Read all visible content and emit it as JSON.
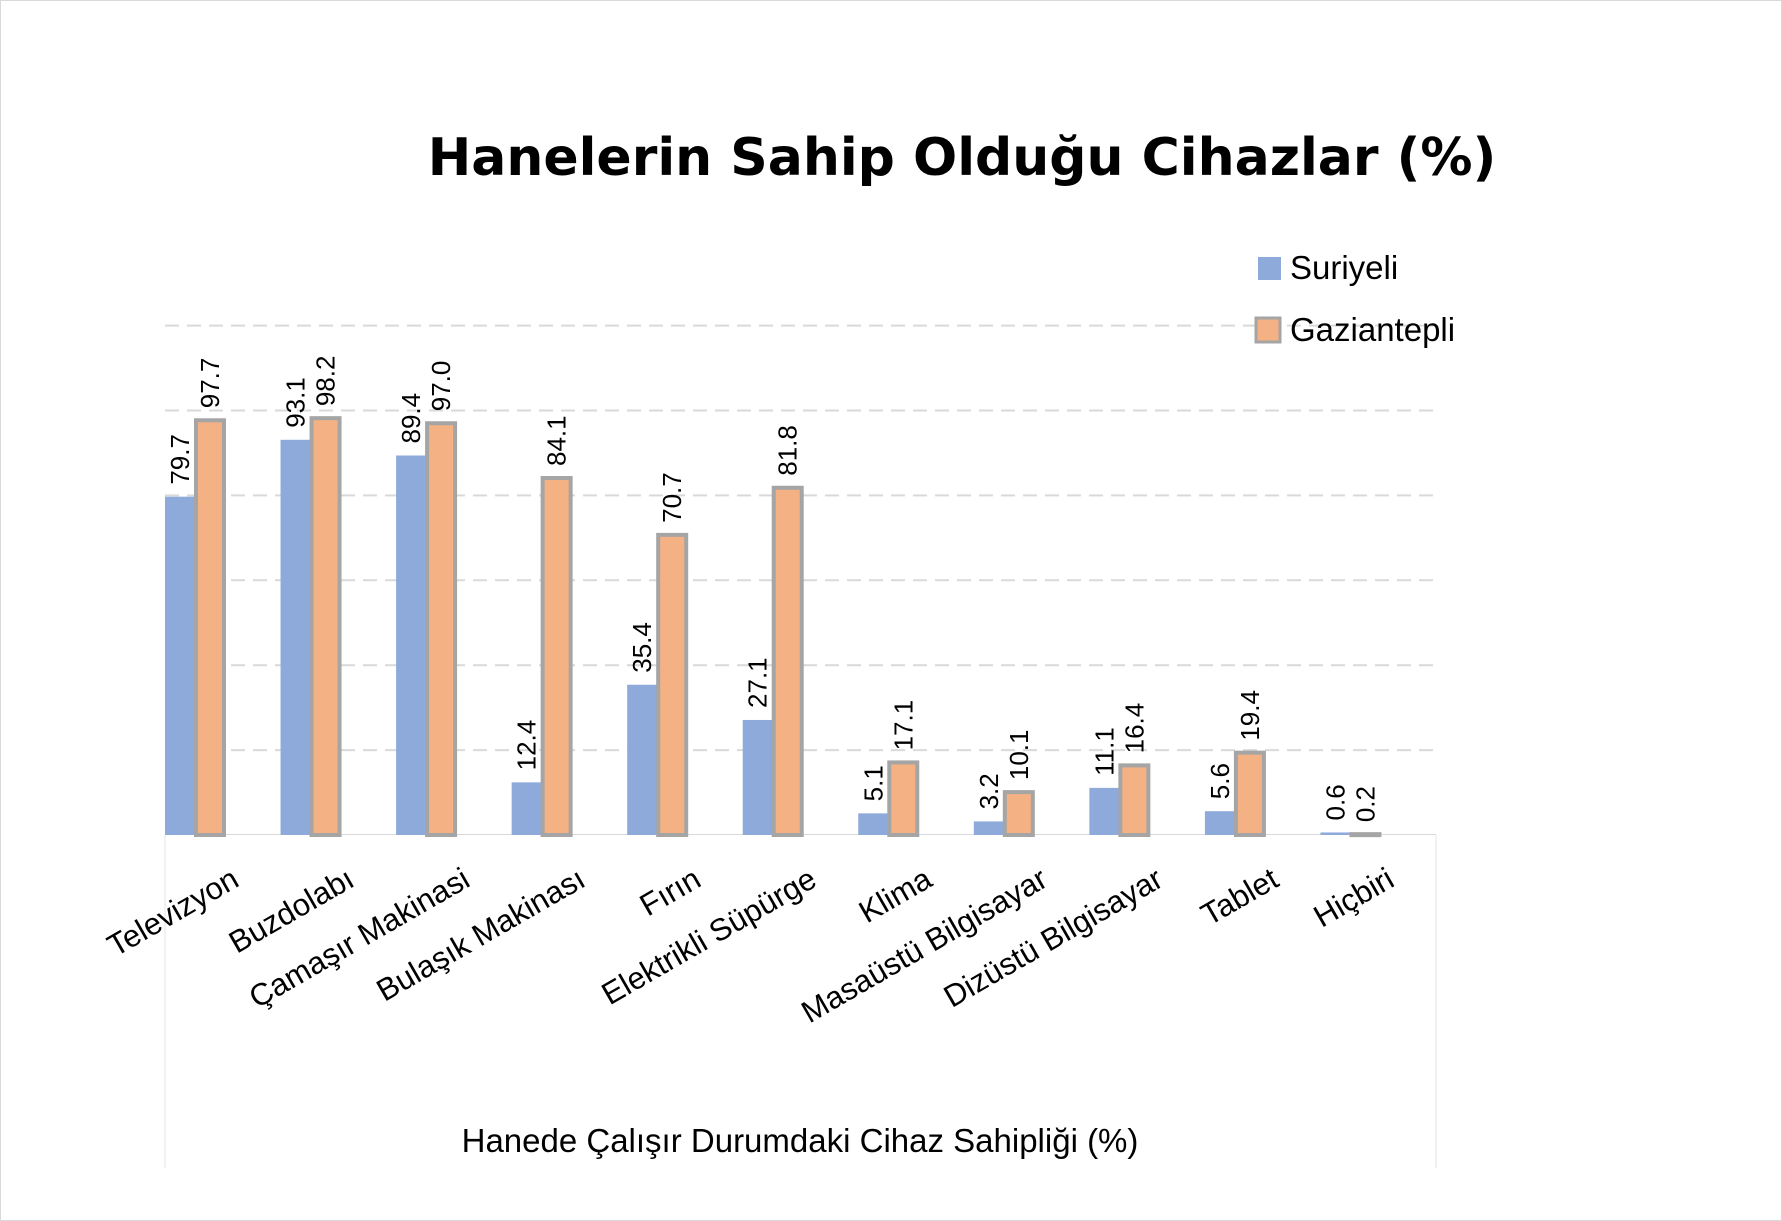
{
  "chart_data": {
    "type": "bar",
    "title": "Hanelerin Sahip Olduğu Cihazlar (%)",
    "xlabel": "Hanede Çalışır Durumdaki Cihaz Sahipliği (%)",
    "ylabel": "",
    "ylim": [
      0,
      120
    ],
    "grid": true,
    "legend_position": "top-right",
    "categories": [
      "Televizyon",
      "Buzdolabı",
      "Çamaşır Makinasi",
      "Bulaşık Makinası",
      "Fırın",
      "Elektrikli Süpürge",
      "Klima",
      "Masaüstü Bilgisayar",
      "Dizüstü Bilgisayar",
      "Tablet",
      "Hiçbiri"
    ],
    "series": [
      {
        "name": "Suriyeli",
        "color": "#8eaadb",
        "values": [
          79.7,
          93.1,
          89.4,
          12.4,
          35.4,
          27.1,
          5.1,
          3.2,
          11.1,
          5.6,
          0.6
        ],
        "labels": [
          "79.7",
          "93.1",
          "89.4",
          "12.4",
          "35.4",
          "27.1",
          "5.1",
          "3.2",
          "11.1",
          "5.6",
          "0.6"
        ]
      },
      {
        "name": "Gaziantepli",
        "color": "#f4b183",
        "values": [
          97.7,
          98.2,
          97.0,
          84.1,
          70.7,
          81.8,
          17.1,
          10.1,
          16.4,
          19.4,
          0.2
        ],
        "labels": [
          "97.7",
          "98.2",
          "97.0",
          "84.1",
          "70.7",
          "81.8",
          "17.1",
          "10.1",
          "16.4",
          "19.4",
          "0.2"
        ]
      }
    ]
  }
}
